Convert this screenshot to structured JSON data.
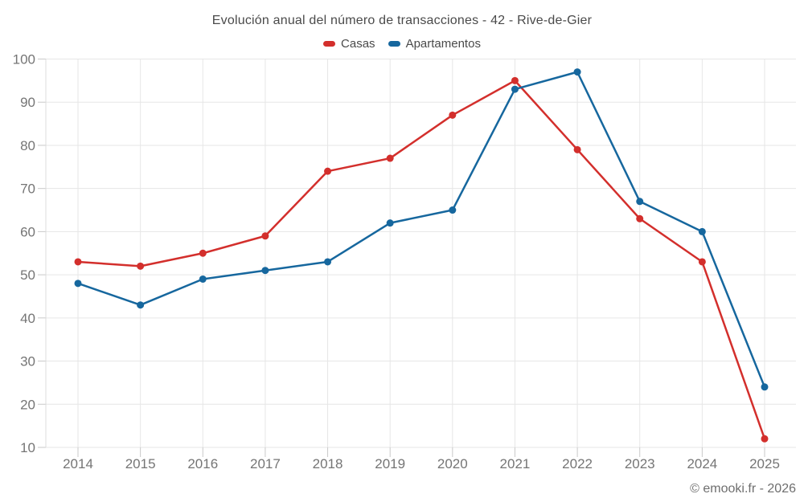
{
  "header": {
    "title": "Evolución anual del número de transacciones - 42 - Rive-de-Gier"
  },
  "legend": [
    {
      "label": "Casas",
      "color": "#d32f2c"
    },
    {
      "label": "Apartamentos",
      "color": "#16679e"
    }
  ],
  "footer": {
    "credit": "© emooki.fr - 2026"
  },
  "colors": {
    "grid": "#e6e6e6",
    "axis": "#dcdcdc",
    "tick": "#c9c9c9",
    "axis_text": "#757575"
  },
  "chart_data": {
    "type": "line",
    "title": "Evolución anual del número de transacciones - 42 - Rive-de-Gier",
    "categories": [
      "2014",
      "2015",
      "2016",
      "2017",
      "2018",
      "2019",
      "2020",
      "2021",
      "2022",
      "2023",
      "2024",
      "2025"
    ],
    "series": [
      {
        "name": "Casas",
        "color": "#d32f2c",
        "values": [
          53,
          52,
          55,
          59,
          74,
          77,
          87,
          95,
          79,
          63,
          53,
          12
        ]
      },
      {
        "name": "Apartamentos",
        "color": "#16679e",
        "values": [
          48,
          43,
          49,
          51,
          53,
          62,
          65,
          93,
          97,
          67,
          60,
          24
        ]
      }
    ],
    "xlabel": "",
    "ylabel": "",
    "ylim": [
      10,
      100
    ],
    "yticks": [
      10,
      20,
      30,
      40,
      50,
      60,
      70,
      80,
      90,
      100
    ],
    "grid": true,
    "legend_position": "top",
    "marker": "circle"
  }
}
